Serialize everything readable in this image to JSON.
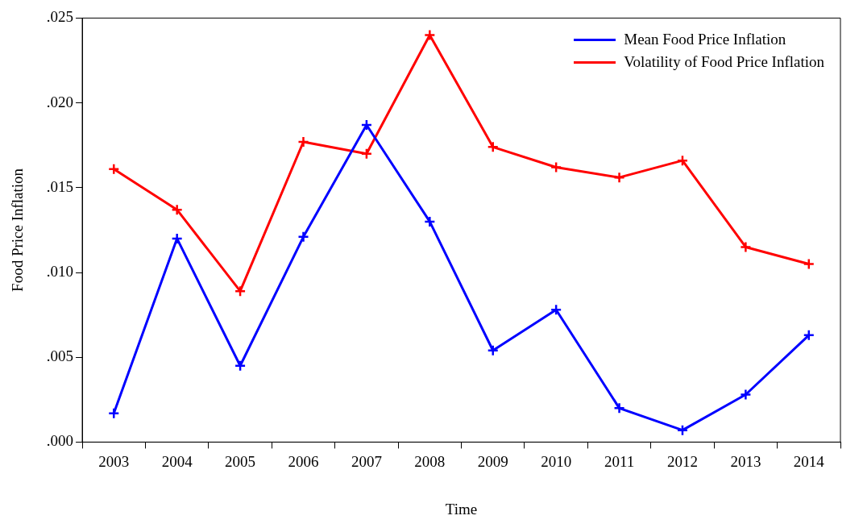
{
  "chart_data": {
    "type": "line",
    "xlabel": "Time",
    "ylabel": "Food Price Inflation",
    "categories": [
      "2003",
      "2004",
      "2005",
      "2006",
      "2007",
      "2008",
      "2009",
      "2010",
      "2011",
      "2012",
      "2013",
      "2014"
    ],
    "series": [
      {
        "name": "Mean Food Price Inflation",
        "color": "#0000ff",
        "marker": "cross",
        "values": [
          0.0017,
          0.012,
          0.0045,
          0.0121,
          0.0187,
          0.013,
          0.0054,
          0.0078,
          0.002,
          0.0007,
          0.0028,
          0.0063
        ]
      },
      {
        "name": "Volatility of Food Price Inflation",
        "color": "#ff0000",
        "marker": "cross",
        "values": [
          0.0161,
          0.0137,
          0.0089,
          0.0177,
          0.017,
          0.024,
          0.0174,
          0.0162,
          0.0156,
          0.0166,
          0.0115,
          0.0105
        ]
      }
    ],
    "ylim": [
      0,
      0.025
    ],
    "yticks": [
      {
        "value": 0,
        "label": ".000"
      },
      {
        "value": 0.005,
        "label": ".005"
      },
      {
        "value": 0.01,
        "label": ".010"
      },
      {
        "value": 0.015,
        "label": ".015"
      },
      {
        "value": 0.02,
        "label": ".020"
      },
      {
        "value": 0.025,
        "label": ".025"
      }
    ],
    "grid": false,
    "legend": "top right",
    "line_style": "solid"
  }
}
